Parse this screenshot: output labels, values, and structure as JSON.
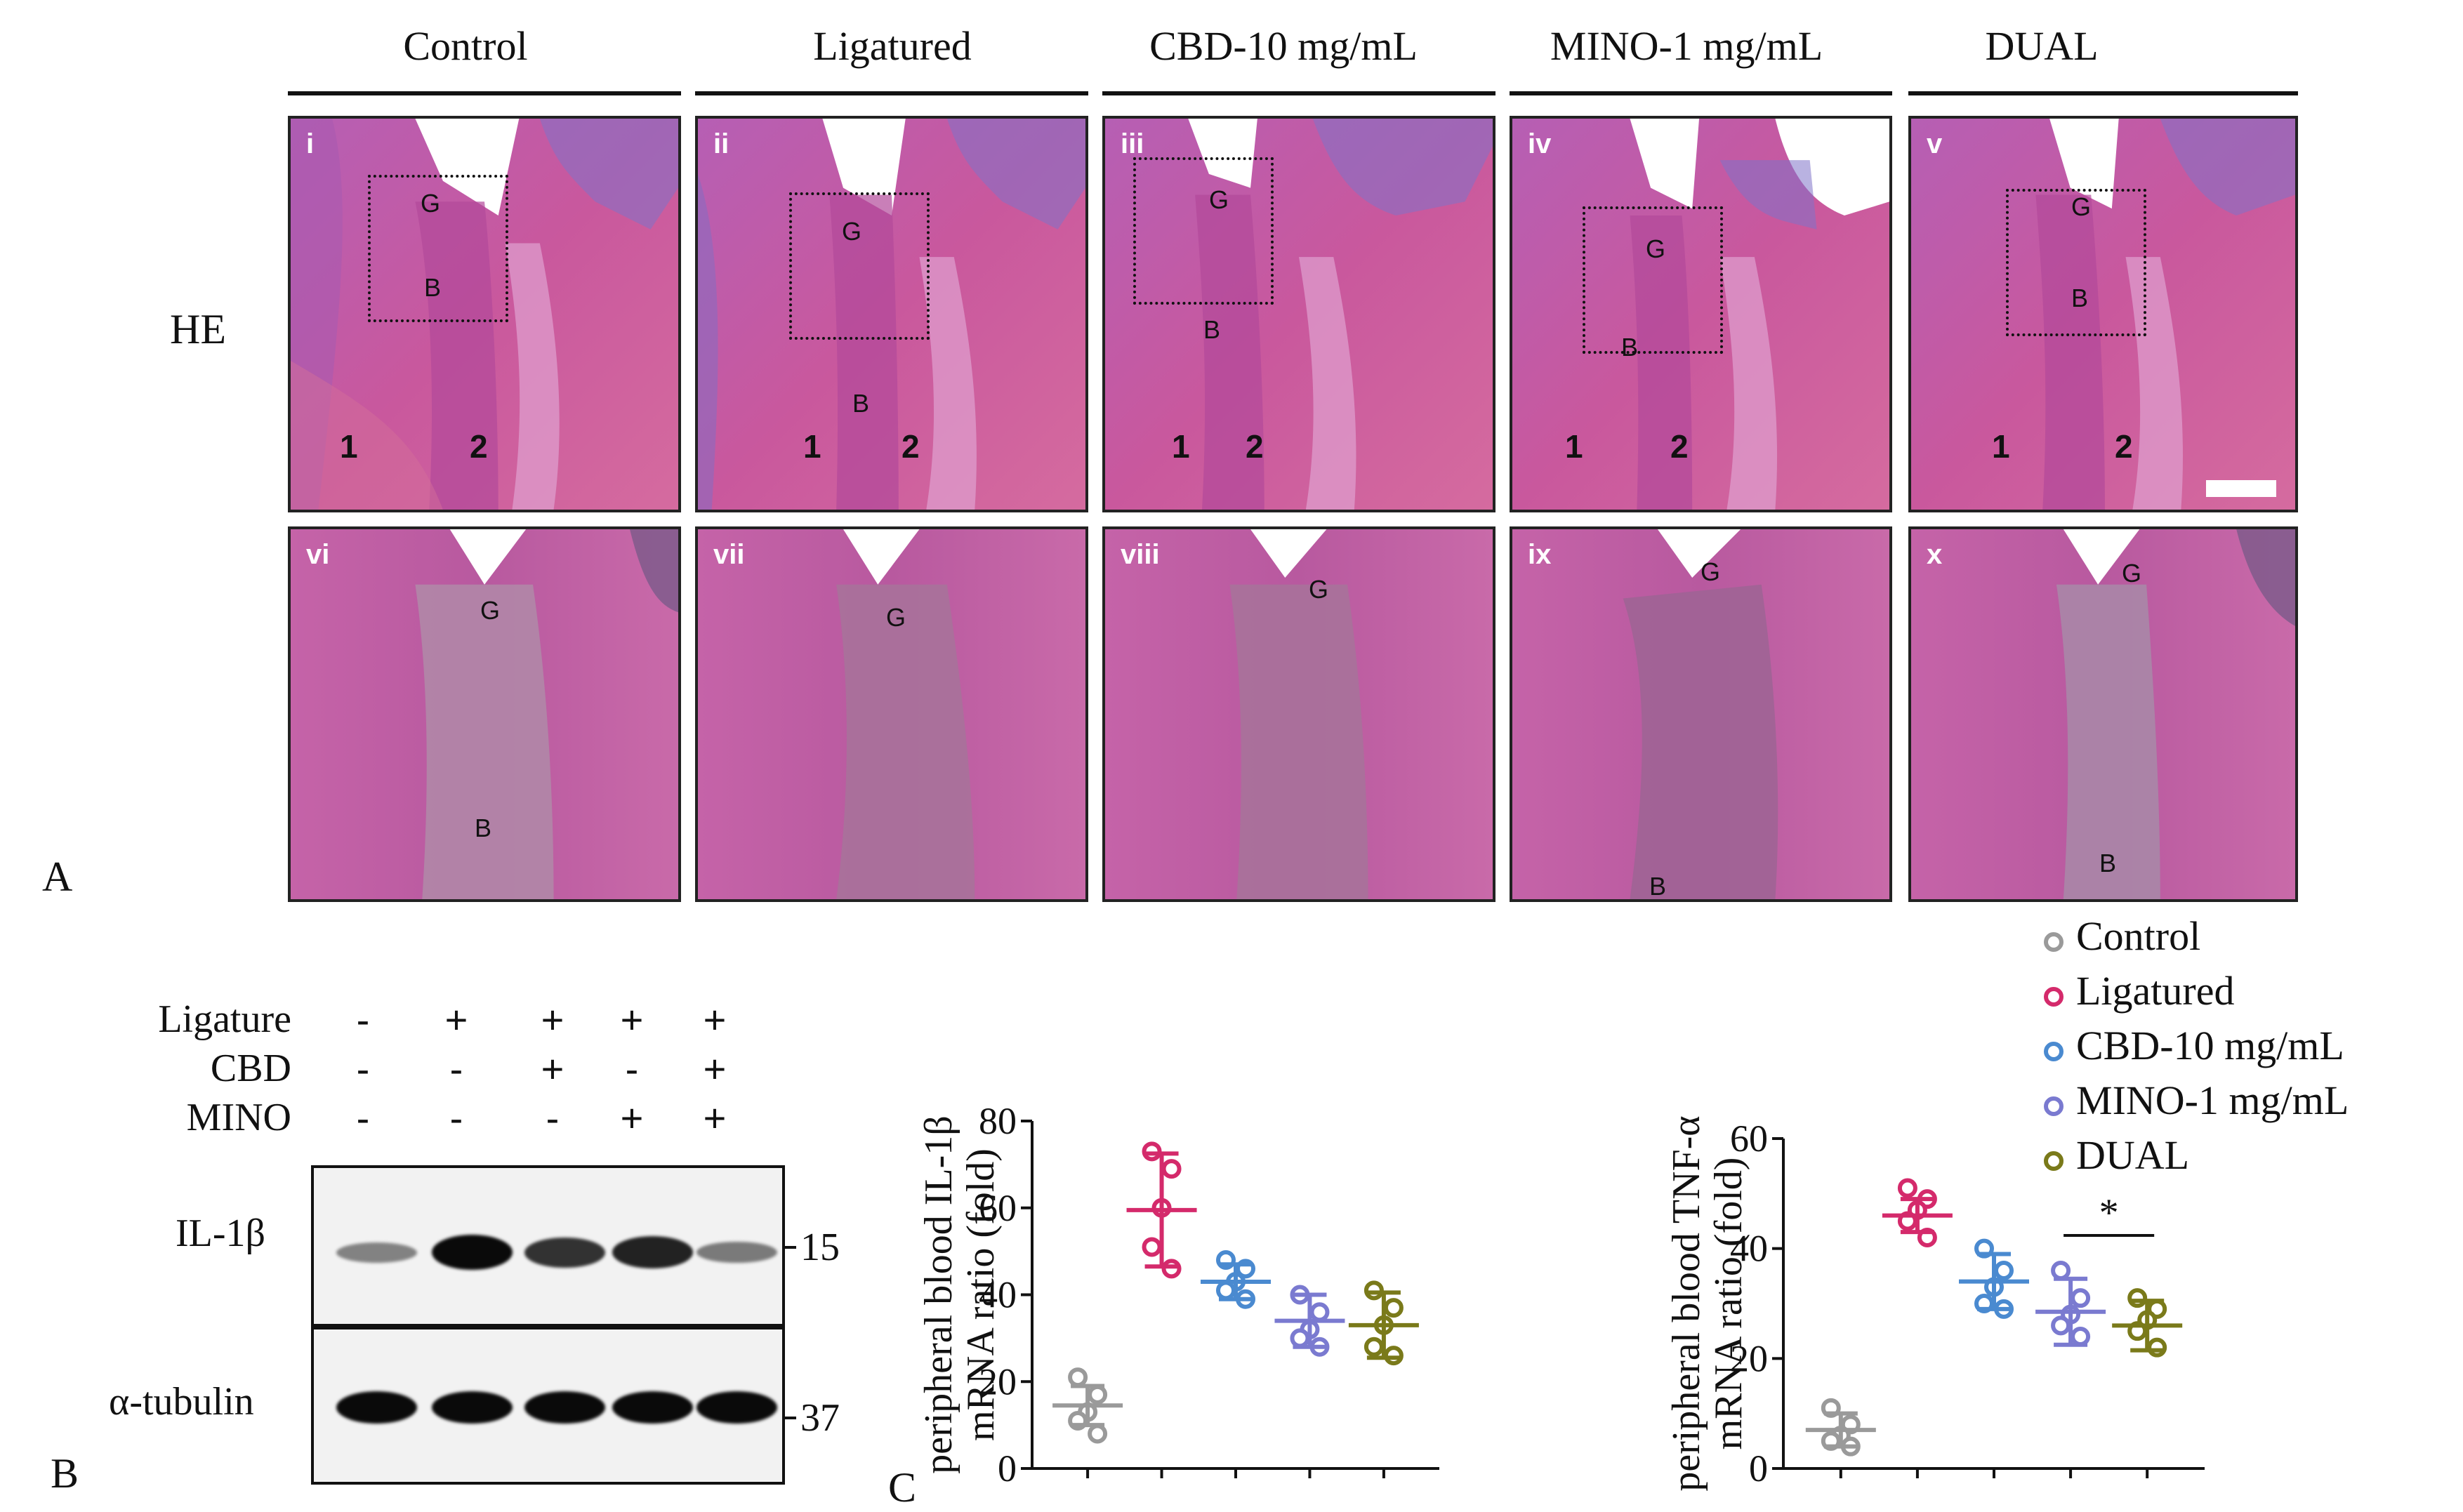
{
  "panelA": {
    "letter": "A",
    "row_label": "HE",
    "columns": [
      "Control",
      "Ligatured",
      "CBD-10 mg/mL",
      "MINO-1 mg/mL",
      "DUAL"
    ],
    "top_roman": [
      "i",
      "ii",
      "iii",
      "iv",
      "v"
    ],
    "bottom_roman": [
      "vi",
      "vii",
      "viii",
      "ix",
      "x"
    ],
    "tissue_labels": {
      "gingiva": "G",
      "bone": "B",
      "tooth1": "1",
      "tooth2": "2"
    }
  },
  "panelB": {
    "letter": "B",
    "rows": [
      {
        "label": "Ligature",
        "signs": [
          "-",
          "+",
          "+",
          "+",
          "+"
        ]
      },
      {
        "label": "CBD",
        "signs": [
          "-",
          "-",
          "+",
          "-",
          "+"
        ]
      },
      {
        "label": "MINO",
        "signs": [
          "-",
          "-",
          "-",
          "+",
          "+"
        ]
      }
    ],
    "blots": [
      {
        "label": "IL-1β",
        "kda": "15",
        "band_intensity": [
          0.25,
          1.0,
          0.75,
          0.85,
          0.3
        ]
      },
      {
        "label": "α-tubulin",
        "kda": "37",
        "band_intensity": [
          1.0,
          1.0,
          1.0,
          1.0,
          1.0
        ]
      }
    ]
  },
  "panelC": {
    "letter": "C",
    "legend": [
      {
        "name": "Control",
        "color": "#9a9a9a"
      },
      {
        "name": "Ligatured",
        "color": "#d42a6b"
      },
      {
        "name": "CBD-10 mg/mL",
        "color": "#4a8ad0"
      },
      {
        "name": "MINO-1 mg/mL",
        "color": "#7a7ad0"
      },
      {
        "name": "DUAL",
        "color": "#7a7a1a"
      }
    ],
    "significance": "*"
  },
  "chart_data": [
    {
      "type": "scatter",
      "ylabel_line1": "peripheral blood IL-1β",
      "ylabel_line2": "mRNA ratio (fold)",
      "ylim": [
        0,
        80
      ],
      "yticks": [
        0,
        20,
        40,
        60,
        80
      ],
      "groups": [
        {
          "name": "Control",
          "mean": 14.5,
          "sd": 4.5,
          "points": [
            21,
            17,
            13,
            11,
            8
          ]
        },
        {
          "name": "Ligatured",
          "mean": 59.5,
          "sd": 13,
          "points": [
            73,
            69,
            60,
            51,
            46
          ]
        },
        {
          "name": "CBD-10 mg/mL",
          "mean": 43,
          "sd": 4,
          "points": [
            48,
            46,
            43,
            41,
            39
          ]
        },
        {
          "name": "MINO-1 mg/mL",
          "mean": 34,
          "sd": 6,
          "points": [
            40,
            36,
            32,
            30,
            28
          ]
        },
        {
          "name": "DUAL",
          "mean": 33,
          "sd": 7.5,
          "points": [
            41,
            37,
            33,
            28,
            26
          ]
        }
      ]
    },
    {
      "type": "scatter",
      "ylabel_line1": "peripheral blood TNF-α",
      "ylabel_line2": "mRNA ratio (fold)",
      "ylim": [
        0,
        60
      ],
      "yticks": [
        0,
        20,
        40,
        60
      ],
      "significance_between": [
        "MINO-1 mg/mL",
        "DUAL"
      ],
      "groups": [
        {
          "name": "Control",
          "mean": 7,
          "sd": 3,
          "points": [
            11,
            8,
            6,
            5,
            4
          ]
        },
        {
          "name": "Ligatured",
          "mean": 46,
          "sd": 3,
          "points": [
            51,
            49,
            47,
            45,
            42
          ]
        },
        {
          "name": "CBD-10 mg/mL",
          "mean": 34,
          "sd": 5,
          "points": [
            40,
            36,
            33,
            30,
            29
          ]
        },
        {
          "name": "MINO-1 mg/mL",
          "mean": 28.5,
          "sd": 6,
          "points": [
            36,
            31,
            28,
            26,
            24
          ]
        },
        {
          "name": "DUAL",
          "mean": 26,
          "sd": 4.5,
          "points": [
            31,
            29,
            27,
            25,
            22
          ]
        }
      ]
    }
  ]
}
